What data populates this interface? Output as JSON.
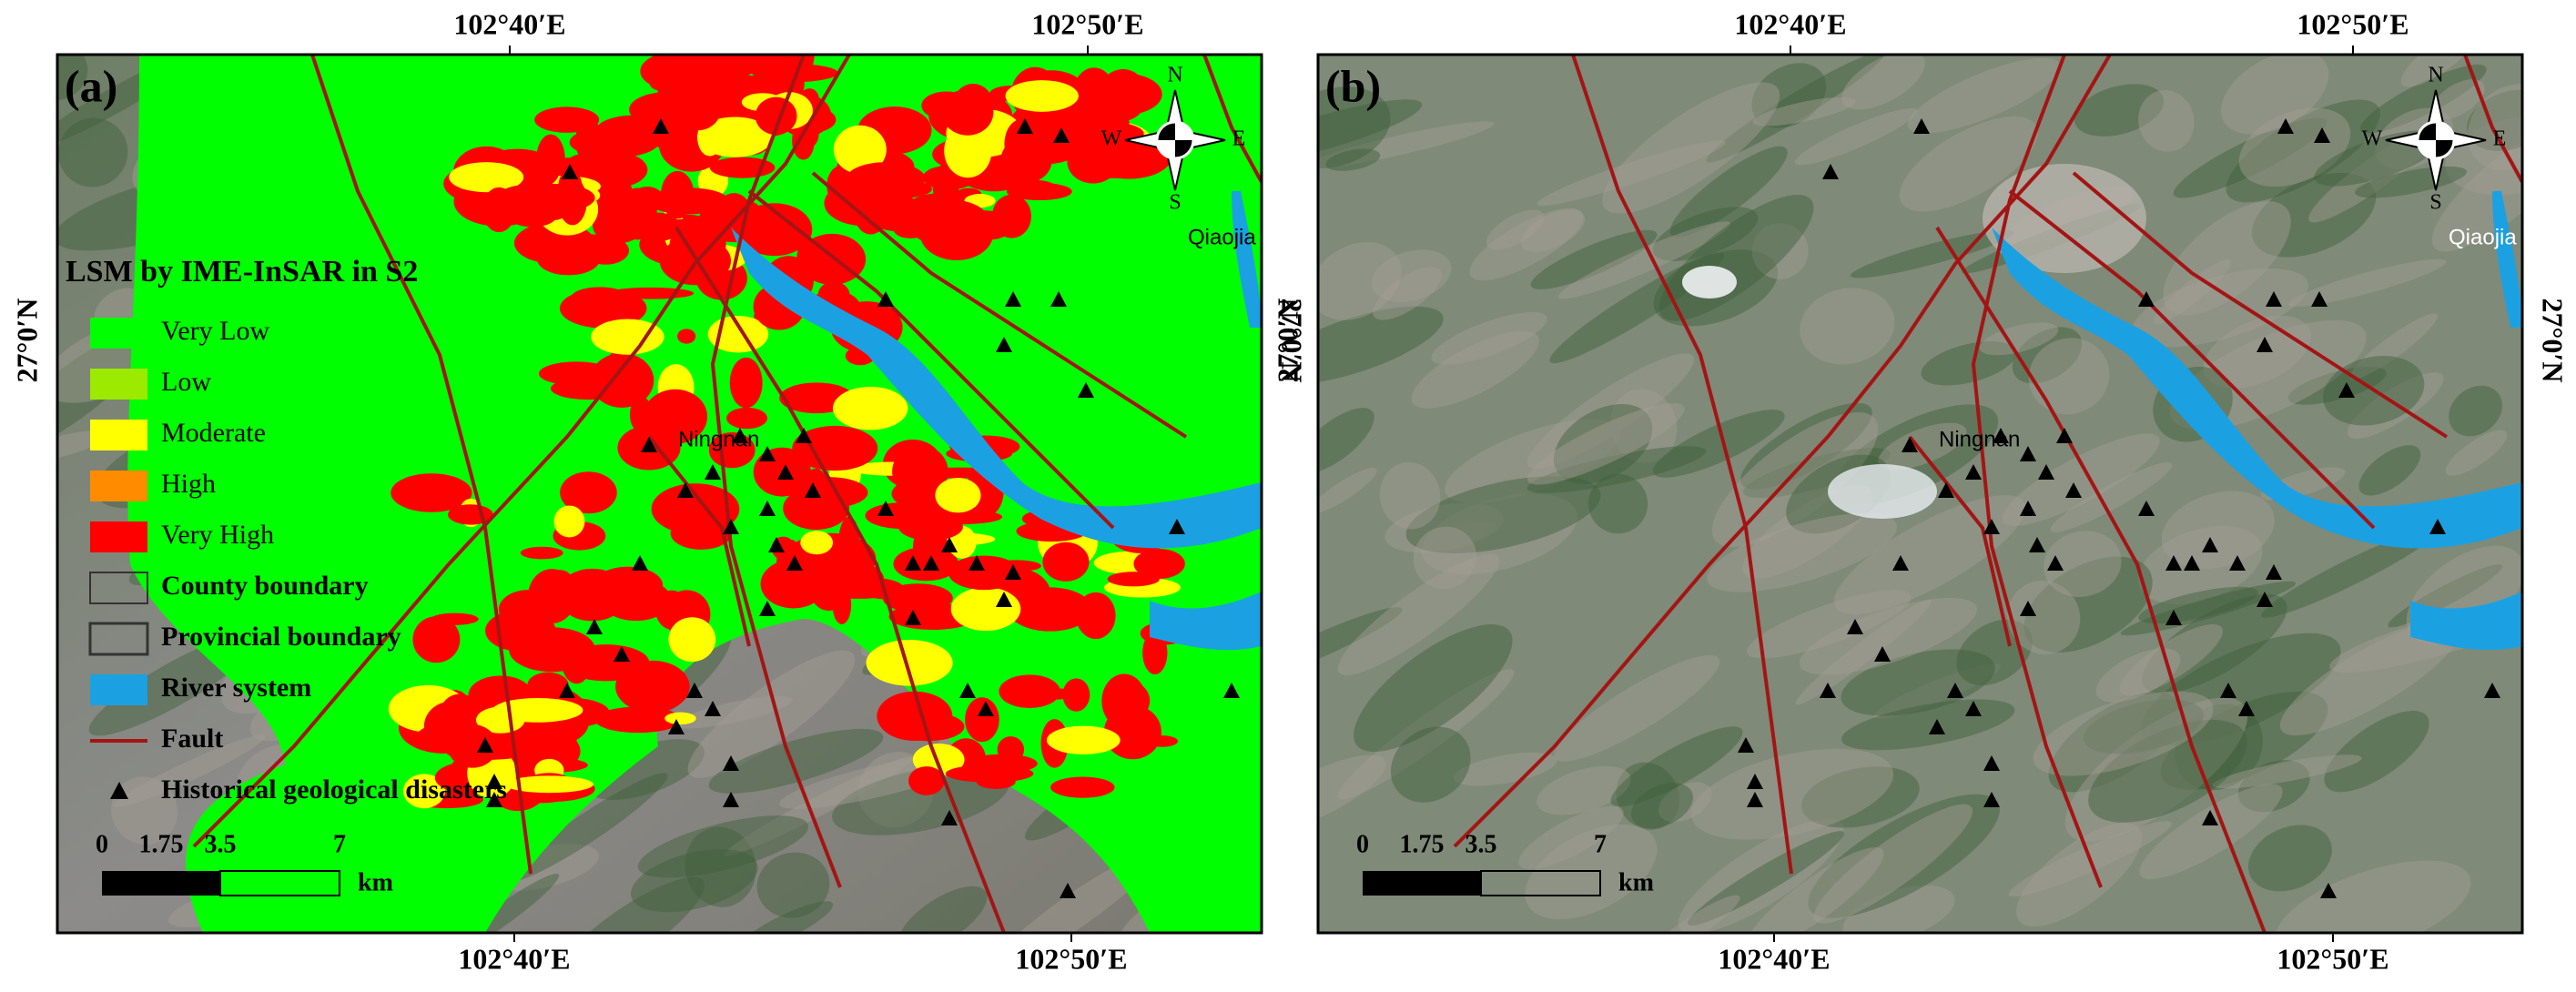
{
  "legend": {
    "title": "LSM by IME-InSAR in S2",
    "items": [
      {
        "label": "Very Low",
        "color": "#00ff00"
      },
      {
        "label": "Low",
        "color": "#9bea00"
      },
      {
        "label": "Moderate",
        "color": "#ffff00"
      },
      {
        "label": "High",
        "color": "#ff8c00"
      },
      {
        "label": "Very High",
        "color": "#ff0000"
      },
      {
        "label": "County boundary"
      },
      {
        "label": "Provincial boundary"
      },
      {
        "label": "River system",
        "color": "#1ba1e2"
      },
      {
        "label": "Fault",
        "color": "#a31515"
      },
      {
        "label": "Historical geological disasters"
      }
    ]
  },
  "panels": [
    {
      "label": "(a)",
      "top_ticks": [
        "102°40′E",
        "102°50′E"
      ],
      "bottom_ticks": [
        "102°40′E",
        "102°50′E"
      ],
      "left_tick": "27°0′N",
      "right_tick": "27°0′N",
      "places": [
        "Ningnan",
        "Qiaojia"
      ],
      "compass": [
        "N",
        "S",
        "W",
        "E"
      ],
      "scale_labels": [
        "0",
        "1.75",
        "3.5",
        "7"
      ],
      "scale_unit": "km"
    },
    {
      "label": "(b)",
      "top_ticks": [
        "102°40′E",
        "102°50′E"
      ],
      "bottom_ticks": [
        "102°40′E",
        "102°50′E"
      ],
      "left_tick": "27°0′N",
      "right_tick": "27°0′N",
      "places": [
        "Ningnan",
        "Qiaojia"
      ],
      "compass": [
        "N",
        "S",
        "W",
        "E"
      ],
      "scale_labels": [
        "0",
        "1.75",
        "3.5",
        "7"
      ],
      "scale_unit": "km"
    }
  ]
}
